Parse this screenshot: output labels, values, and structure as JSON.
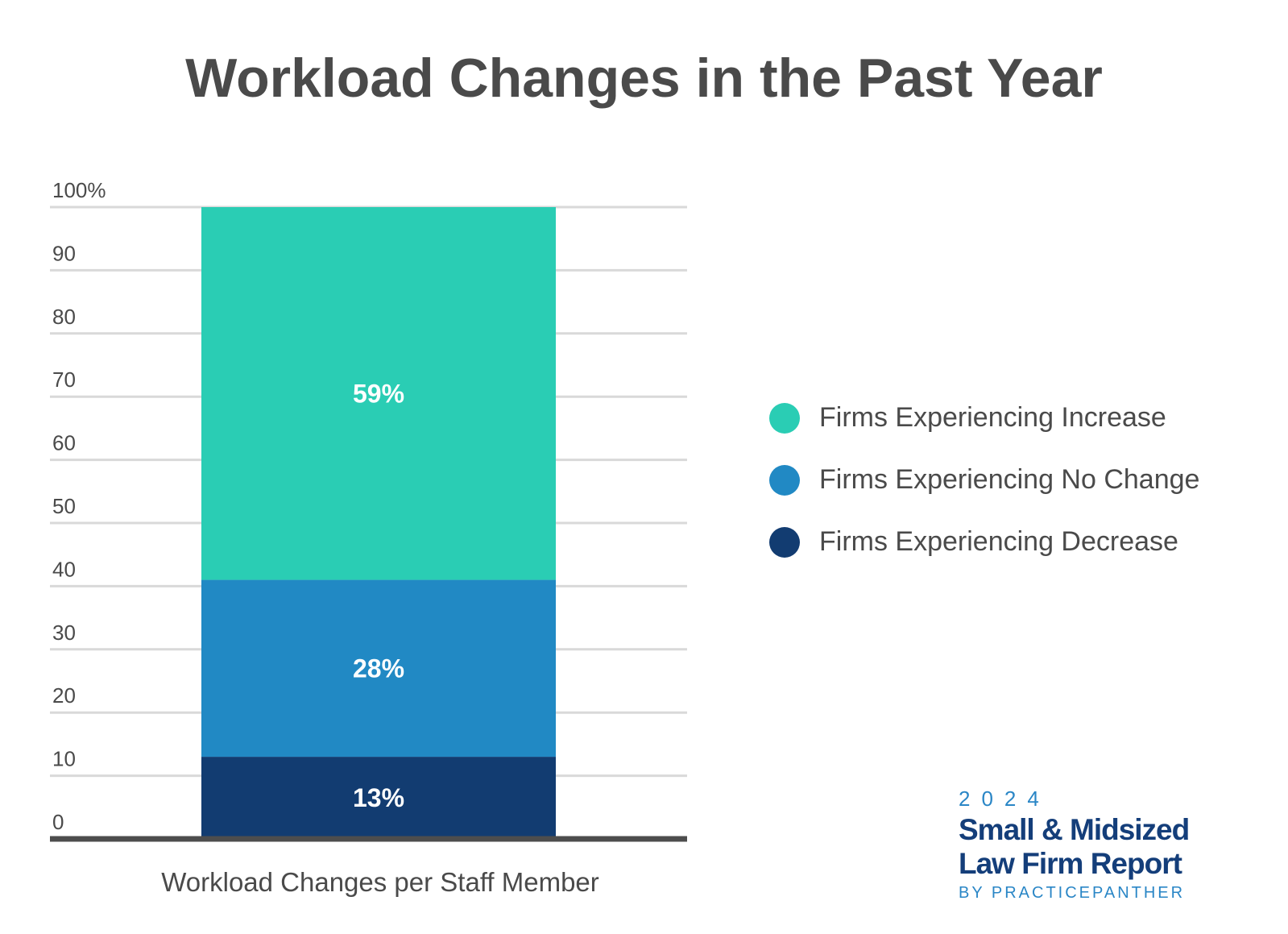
{
  "title": "Workload Changes in the Past Year",
  "chart_data": {
    "type": "bar",
    "stacked": true,
    "categories": [
      "Workload Changes per Staff Member"
    ],
    "series": [
      {
        "name": "Firms Experiencing Decrease",
        "values": [
          13
        ],
        "label": "13%",
        "color": "#123c71"
      },
      {
        "name": "Firms Experiencing No Change",
        "values": [
          28
        ],
        "label": "28%",
        "color": "#2189c4"
      },
      {
        "name": "Firms Experiencing Increase",
        "values": [
          59
        ],
        "label": "59%",
        "color": "#2acdb4"
      }
    ],
    "ylim": [
      0,
      100
    ],
    "yticks": [
      "0",
      "10",
      "20",
      "30",
      "40",
      "50",
      "60",
      "70",
      "80",
      "90",
      "100%"
    ],
    "xlabel": "Workload Changes per Staff Member",
    "ylabel": "",
    "grid": true,
    "legend_position": "right"
  },
  "legend": [
    {
      "label": "Firms Experiencing Increase",
      "color": "#2acdb4"
    },
    {
      "label": "Firms Experiencing No Change",
      "color": "#2189c4"
    },
    {
      "label": "Firms Experiencing Decrease",
      "color": "#123c71"
    }
  ],
  "brand": {
    "year": "2024",
    "name_line1": "Small & Midsized",
    "name_line2": "Law Firm Report",
    "byline": "BY PRACTICEPANTHER"
  }
}
